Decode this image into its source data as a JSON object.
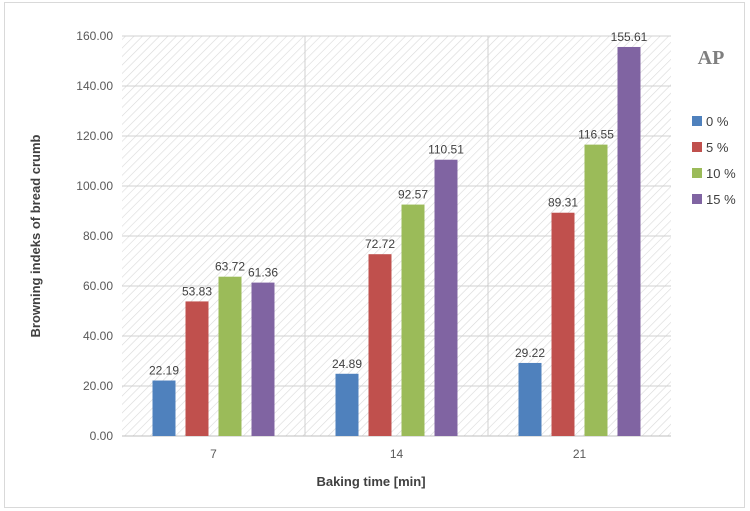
{
  "chart_data": {
    "type": "bar",
    "title": "AP",
    "xlabel": "Baking time [min]",
    "ylabel": "Browning indeks of bread crumb",
    "categories": [
      "7",
      "14",
      "21"
    ],
    "series": [
      {
        "name": "0 %",
        "color": "#4f81bd",
        "values": [
          22.19,
          24.89,
          29.22
        ]
      },
      {
        "name": "5 %",
        "color": "#c0504d",
        "values": [
          53.83,
          72.72,
          89.31
        ]
      },
      {
        "name": "10 %",
        "color": "#9bbb59",
        "values": [
          63.72,
          92.57,
          116.55
        ]
      },
      {
        "name": "15 %",
        "color": "#8064a2",
        "values": [
          61.36,
          110.51,
          155.61
        ]
      }
    ],
    "ylim": [
      0,
      160
    ],
    "yticks": [
      "0.00",
      "20.00",
      "40.00",
      "60.00",
      "80.00",
      "100.00",
      "120.00",
      "140.00",
      "160.00"
    ],
    "grid": true,
    "legend_position": "right"
  }
}
